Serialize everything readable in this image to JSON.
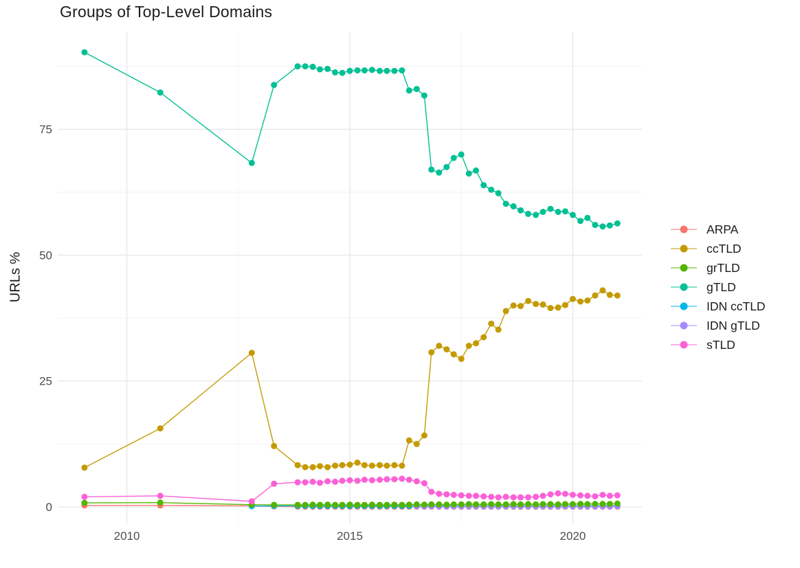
{
  "chart_data": {
    "type": "line",
    "title": "Groups of Top-Level Domains",
    "xlabel": "",
    "ylabel": "URLs %",
    "x_ticks": [
      2010,
      2015,
      2020
    ],
    "x_minor_ticks": [
      2012.5,
      2017.5
    ],
    "y_ticks": [
      0,
      25,
      50,
      75
    ],
    "y_minor_ticks": [
      12.5,
      37.5,
      62.5,
      87.5
    ],
    "xlim": [
      2008.45,
      2021.55
    ],
    "ylim": [
      -3.4,
      94.4
    ],
    "grid": true,
    "legend_position": "right",
    "axis_label_color": "#4d4d4d",
    "major_grid_color": "#e6e6e6",
    "minor_grid_color": "#f1f1f1",
    "draw_order": [
      "ARPA",
      "IDN ccTLD",
      "IDN gTLD",
      "ccTLD",
      "gTLD",
      "grTLD",
      "sTLD"
    ],
    "series": [
      {
        "name": "ARPA",
        "color": "#F8766D",
        "x": [
          2009.05,
          2010.75,
          2012.8,
          2013.3,
          2013.83,
          2014,
          2014.17,
          2014.33,
          2014.5,
          2014.67,
          2014.83,
          2015,
          2015.17,
          2015.33,
          2015.5,
          2015.67,
          2015.83,
          2016,
          2016.17,
          2016.33,
          2016.5,
          2016.67,
          2016.83,
          2017,
          2017.17,
          2017.33,
          2017.5,
          2017.67,
          2017.83,
          2018,
          2018.17,
          2018.33,
          2018.5,
          2018.67,
          2018.83,
          2019,
          2019.17,
          2019.33,
          2019.5,
          2019.67,
          2019.83,
          2020,
          2020.17,
          2020.33,
          2020.5,
          2020.67,
          2020.83,
          2021
        ],
        "y": [
          0.3,
          0.3,
          0.2,
          0.1,
          0.05,
          0.05,
          0.05,
          0.05,
          0.05,
          0.05,
          0.05,
          0.05,
          0.05,
          0.05,
          0.05,
          0.05,
          0.05,
          0.05,
          0.05,
          0.05,
          0.05,
          0.05,
          0.05,
          0.05,
          0.05,
          0.05,
          0.05,
          0.05,
          0.05,
          0.05,
          0.05,
          0.05,
          0.05,
          0.05,
          0.05,
          0.05,
          0.05,
          0.05,
          0.05,
          0.05,
          0.05,
          0.05,
          0.05,
          0.05,
          0.05,
          0.05,
          0.05,
          0.05
        ]
      },
      {
        "name": "ccTLD",
        "color": "#C49A00",
        "x": [
          2009.05,
          2010.75,
          2012.8,
          2013.3,
          2013.83,
          2014,
          2014.17,
          2014.33,
          2014.5,
          2014.67,
          2014.83,
          2015,
          2015.17,
          2015.33,
          2015.5,
          2015.67,
          2015.83,
          2016,
          2016.17,
          2016.33,
          2016.5,
          2016.67,
          2016.83,
          2017,
          2017.17,
          2017.33,
          2017.5,
          2017.67,
          2017.83,
          2018,
          2018.17,
          2018.33,
          2018.5,
          2018.67,
          2018.83,
          2019,
          2019.17,
          2019.33,
          2019.5,
          2019.67,
          2019.83,
          2020,
          2020.17,
          2020.33,
          2020.5,
          2020.67,
          2020.83,
          2021
        ],
        "y": [
          7.8,
          15.6,
          30.6,
          12.1,
          8.3,
          7.9,
          7.9,
          8.1,
          7.9,
          8.2,
          8.3,
          8.4,
          8.8,
          8.3,
          8.2,
          8.3,
          8.2,
          8.3,
          8.2,
          13.2,
          12.5,
          14.2,
          30.7,
          32,
          31.3,
          30.3,
          29.4,
          32,
          32.5,
          33.7,
          36.4,
          35.2,
          38.9,
          40,
          39.9,
          40.9,
          40.3,
          40.2,
          39.5,
          39.6,
          40.1,
          41.3,
          40.8,
          41,
          42,
          43,
          42.1,
          42
        ]
      },
      {
        "name": "grTLD",
        "color": "#53B400",
        "x": [
          2009.05,
          2010.75,
          2012.8,
          2013.3,
          2013.83,
          2014,
          2014.17,
          2014.33,
          2014.5,
          2014.67,
          2014.83,
          2015,
          2015.17,
          2015.33,
          2015.5,
          2015.67,
          2015.83,
          2016,
          2016.17,
          2016.33,
          2016.5,
          2016.67,
          2016.83,
          2017,
          2017.17,
          2017.33,
          2017.5,
          2017.67,
          2017.83,
          2018,
          2018.17,
          2018.33,
          2018.5,
          2018.67,
          2018.83,
          2019,
          2019.17,
          2019.33,
          2019.5,
          2019.67,
          2019.83,
          2020,
          2020.17,
          2020.33,
          2020.5,
          2020.67,
          2020.83,
          2021
        ],
        "y": [
          0.8,
          0.85,
          0.45,
          0.4,
          0.4,
          0.4,
          0.45,
          0.4,
          0.45,
          0.4,
          0.4,
          0.45,
          0.4,
          0.4,
          0.45,
          0.4,
          0.4,
          0.45,
          0.4,
          0.45,
          0.5,
          0.45,
          0.5,
          0.5,
          0.45,
          0.5,
          0.5,
          0.55,
          0.5,
          0.5,
          0.55,
          0.5,
          0.5,
          0.55,
          0.5,
          0.55,
          0.5,
          0.55,
          0.55,
          0.5,
          0.55,
          0.55,
          0.6,
          0.55,
          0.6,
          0.6,
          0.6,
          0.65
        ]
      },
      {
        "name": "gTLD",
        "color": "#00C094",
        "x": [
          2009.05,
          2010.75,
          2012.8,
          2013.3,
          2013.83,
          2014,
          2014.17,
          2014.33,
          2014.5,
          2014.67,
          2014.83,
          2015,
          2015.17,
          2015.33,
          2015.5,
          2015.67,
          2015.83,
          2016,
          2016.17,
          2016.33,
          2016.5,
          2016.67,
          2016.83,
          2017,
          2017.17,
          2017.33,
          2017.5,
          2017.67,
          2017.83,
          2018,
          2018.17,
          2018.33,
          2018.5,
          2018.67,
          2018.83,
          2019,
          2019.17,
          2019.33,
          2019.5,
          2019.67,
          2019.83,
          2020,
          2020.17,
          2020.33,
          2020.5,
          2020.67,
          2020.83,
          2021
        ],
        "y": [
          90.3,
          82.3,
          68.3,
          83.8,
          87.5,
          87.5,
          87.4,
          86.9,
          87,
          86.3,
          86.2,
          86.6,
          86.7,
          86.7,
          86.8,
          86.6,
          86.6,
          86.6,
          86.7,
          82.7,
          83,
          81.7,
          67,
          66.4,
          67.5,
          69.3,
          70,
          66.2,
          66.8,
          63.9,
          63,
          62.3,
          60.2,
          59.7,
          58.9,
          58.2,
          58,
          58.6,
          59.2,
          58.6,
          58.7,
          58,
          56.8,
          57.4,
          56,
          55.7,
          55.9,
          56.3
        ]
      },
      {
        "name": "IDN ccTLD",
        "color": "#00B6EB",
        "x": [
          2012.8,
          2013.3,
          2013.83,
          2014,
          2014.17,
          2014.33,
          2014.5,
          2014.67,
          2014.83,
          2015,
          2015.17,
          2015.33,
          2015.5,
          2015.67,
          2015.83,
          2016,
          2016.17,
          2016.33,
          2016.5,
          2016.67,
          2016.83,
          2017,
          2017.17,
          2017.33,
          2017.5,
          2017.67,
          2017.83,
          2018,
          2018.17,
          2018.33,
          2018.5,
          2018.67,
          2018.83,
          2019,
          2019.17,
          2019.33,
          2019.5,
          2019.67,
          2019.83,
          2020,
          2020.17,
          2020.33,
          2020.5,
          2020.67,
          2020.83,
          2021
        ],
        "y": [
          0.15,
          0.2,
          0.2,
          0.2,
          0.2,
          0.2,
          0.2,
          0.2,
          0.2,
          0.2,
          0.2,
          0.2,
          0.2,
          0.2,
          0.2,
          0.2,
          0.2,
          0.2,
          0.2,
          0.2,
          0.2,
          0.2,
          0.2,
          0.2,
          0.2,
          0.2,
          0.2,
          0.2,
          0.2,
          0.2,
          0.2,
          0.2,
          0.2,
          0.2,
          0.2,
          0.2,
          0.2,
          0.2,
          0.2,
          0.2,
          0.2,
          0.2,
          0.2,
          0.2,
          0.2,
          0.2
        ]
      },
      {
        "name": "IDN gTLD",
        "color": "#A58AFF",
        "x": [
          2016.5,
          2016.67,
          2016.83,
          2017,
          2017.17,
          2017.33,
          2017.5,
          2017.67,
          2017.83,
          2018,
          2018.17,
          2018.33,
          2018.5,
          2018.67,
          2018.83,
          2019,
          2019.17,
          2019.33,
          2019.5,
          2019.67,
          2019.83,
          2020,
          2020.17,
          2020.33,
          2020.5,
          2020.67,
          2020.83,
          2021
        ],
        "y": [
          0.1,
          0.1,
          0.1,
          0.1,
          0.1,
          0.1,
          0.1,
          0.1,
          0.1,
          0.1,
          0.1,
          0.1,
          0.1,
          0.1,
          0.1,
          0.1,
          0.1,
          0.1,
          0.1,
          0.1,
          0.1,
          0.1,
          0.1,
          0.1,
          0.1,
          0.1,
          0.1,
          0.1
        ]
      },
      {
        "name": "sTLD",
        "color": "#FB61D7",
        "x": [
          2009.05,
          2010.75,
          2012.8,
          2013.3,
          2013.83,
          2014,
          2014.17,
          2014.33,
          2014.5,
          2014.67,
          2014.83,
          2015,
          2015.17,
          2015.33,
          2015.5,
          2015.67,
          2015.83,
          2016,
          2016.17,
          2016.33,
          2016.5,
          2016.67,
          2016.83,
          2017,
          2017.17,
          2017.33,
          2017.5,
          2017.67,
          2017.83,
          2018,
          2018.17,
          2018.33,
          2018.5,
          2018.67,
          2018.83,
          2019,
          2019.17,
          2019.33,
          2019.5,
          2019.67,
          2019.83,
          2020,
          2020.17,
          2020.33,
          2020.5,
          2020.67,
          2020.83,
          2021
        ],
        "y": [
          2,
          2.2,
          1.1,
          4.6,
          4.9,
          4.9,
          5,
          4.8,
          5.1,
          5,
          5.2,
          5.3,
          5.2,
          5.4,
          5.3,
          5.4,
          5.5,
          5.5,
          5.6,
          5.4,
          5.1,
          4.7,
          3,
          2.6,
          2.5,
          2.4,
          2.3,
          2.2,
          2.2,
          2.1,
          2,
          1.9,
          2,
          1.9,
          1.9,
          1.9,
          2,
          2.2,
          2.5,
          2.7,
          2.6,
          2.4,
          2.3,
          2.2,
          2.1,
          2.4,
          2.2,
          2.3
        ]
      }
    ]
  }
}
